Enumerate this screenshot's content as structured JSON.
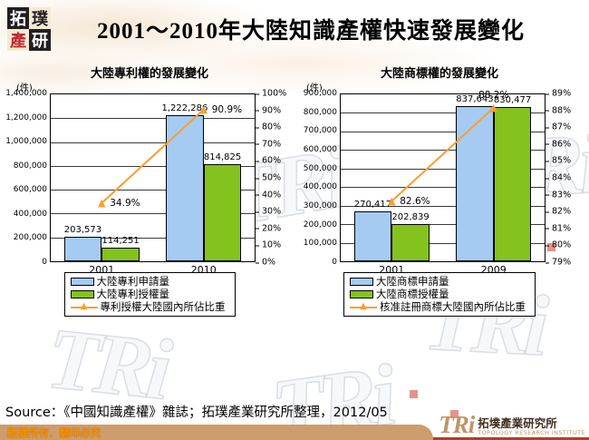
{
  "header": {
    "title": "2001～2010年大陸知識產權快速發展變化",
    "logo_tiles": [
      {
        "ch": "拓",
        "fg": "#ffffff",
        "bg": "#231f20"
      },
      {
        "ch": "璞",
        "fg": "#231f20",
        "bg": "#f2ead8"
      },
      {
        "ch": "產",
        "fg": "#c1272d",
        "bg": "#f2ead8"
      },
      {
        "ch": "研",
        "fg": "#ffffff",
        "bg": "#231f20"
      }
    ]
  },
  "chart_data": [
    {
      "type": "bar",
      "title": "大陸專利權的發展變化",
      "unit": "(件)",
      "categories": [
        "2001",
        "2010"
      ],
      "left_axis": {
        "min": 0,
        "max": 1400000,
        "step": 200000,
        "labels": [
          "1,400,000",
          "1,200,000",
          "1,000,000",
          "800,000",
          "600,000",
          "400,000",
          "200,000",
          "0"
        ]
      },
      "right_axis": {
        "min": 0,
        "max": 100,
        "labels": [
          "100%",
          "90%",
          "80%",
          "70%",
          "60%",
          "50%",
          "40%",
          "30%",
          "20%",
          "10%",
          "0%"
        ]
      },
      "series": [
        {
          "name": "大陸專利申請量",
          "type": "bar",
          "color": "#A5CBF2",
          "values": [
            203573,
            1222286
          ],
          "value_labels": [
            "203,573",
            "1,222,286"
          ]
        },
        {
          "name": "大陸專利授權量",
          "type": "bar",
          "color": "#84C31E",
          "values": [
            114251,
            814825
          ],
          "value_labels": [
            "114,251",
            "814,825"
          ]
        },
        {
          "name": "專利授權大陸國內所佔比重",
          "type": "line",
          "color": "#FF9C2E",
          "axis": "right",
          "values": [
            34.9,
            90.9
          ],
          "value_labels": [
            "34.9%",
            "90.9%"
          ],
          "label_pos": [
            "right",
            "right"
          ]
        }
      ]
    },
    {
      "type": "bar",
      "title": "大陸商標權的發展變化",
      "unit": "(件)",
      "categories": [
        "2001",
        "2009"
      ],
      "left_axis": {
        "min": 0,
        "max": 900000,
        "step": 100000,
        "labels": [
          "900,000",
          "800,000",
          "700,000",
          "600,000",
          "500,000",
          "400,000",
          "300,000",
          "200,000",
          "100,000",
          "0"
        ]
      },
      "right_axis": {
        "min": 79,
        "max": 89,
        "labels": [
          "89%",
          "88%",
          "87%",
          "86%",
          "85%",
          "84%",
          "83%",
          "82%",
          "81%",
          "80%",
          "79%"
        ]
      },
      "series": [
        {
          "name": "大陸商標申請量",
          "type": "bar",
          "color": "#A5CBF2",
          "values": [
            270417,
            837643
          ],
          "value_labels": [
            "270,417",
            "837,643"
          ]
        },
        {
          "name": "大陸商標授權量",
          "type": "bar",
          "color": "#84C31E",
          "values": [
            202839,
            830477
          ],
          "value_labels": [
            "202,839",
            "830,477"
          ]
        },
        {
          "name": "核准註冊商標大陸國內所佔比重",
          "type": "line",
          "color": "#FF9C2E",
          "axis": "right",
          "values": [
            82.6,
            88.2
          ],
          "value_labels": [
            "82.6%",
            "88.2%"
          ],
          "label_pos": [
            "right",
            "above"
          ]
        }
      ]
    }
  ],
  "footer": {
    "source": "Source：《中國知識產權》雜誌；拓璞產業研究所整理，2012/05",
    "copyright": "版權所有．翻印必究",
    "brand": "TRi",
    "brand_cn": "拓墣產業研究所",
    "brand_en": "TOPOLOGY RESEARCH INSTITUTE"
  },
  "watermark": {
    "text": "TRi"
  },
  "colors": {
    "bar_blue": "#A5CBF2",
    "bar_green": "#84C31E",
    "line_orange": "#FF9C2E",
    "footer_bar": "#CD9D6D",
    "footer_line": "#AE3F2B",
    "brand_tan": "#BE9468"
  }
}
